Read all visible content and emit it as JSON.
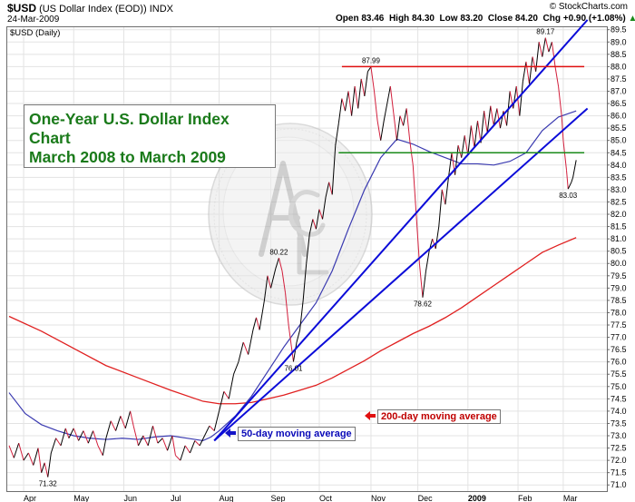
{
  "header": {
    "symbol": "$USD",
    "name": "(US Dollar Index (EOD))",
    "exchange": "INDX",
    "date": "24-Mar-2009",
    "open_label": "Open",
    "open": "83.46",
    "high_label": "High",
    "high": "84.30",
    "low_label": "Low",
    "low": "83.20",
    "close_label": "Close",
    "close": "84.20",
    "chg_label": "Chg",
    "chg": "+0.90 (+1.08%)",
    "up_arrow": "▲",
    "copyright": "© StockCharts.com"
  },
  "panel_label": "$USD (Daily)",
  "title_box": {
    "line1": "One-Year U.S. Dollar Index Chart",
    "line2": "March 2008 to March 2009"
  },
  "ma_labels": {
    "ma200": "200-day moving average",
    "ma50": "50-day moving average"
  },
  "colors": {
    "price": "#000000",
    "price_down": "#d21f3c",
    "ma50": "#3a3ab0",
    "ma200": "#e02020",
    "channel": "#0b0bd8",
    "resistance": "#e01010",
    "support": "#1a8a1a",
    "title_text": "#1a7a1a"
  },
  "chart_data": {
    "type": "line",
    "title": "One-Year U.S. Dollar Index Chart March 2008 to March 2009",
    "ylim": [
      70.75,
      89.6
    ],
    "yticks": [
      "71.0",
      "71.5",
      "72.0",
      "72.5",
      "73.0",
      "73.5",
      "74.0",
      "74.5",
      "75.0",
      "75.5",
      "76.0",
      "76.5",
      "77.0",
      "77.5",
      "78.0",
      "78.5",
      "79.0",
      "79.5",
      "80.0",
      "80.5",
      "81.0",
      "81.5",
      "82.0",
      "82.5",
      "83.0",
      "83.5",
      "84.0",
      "84.5",
      "85.0",
      "85.5",
      "86.0",
      "86.5",
      "87.0",
      "87.5",
      "88.0",
      "88.5",
      "89.0",
      "89.5"
    ],
    "xticks": [
      {
        "label": "Apr",
        "t": 9
      },
      {
        "label": "May",
        "t": 40
      },
      {
        "label": "Jun",
        "t": 71
      },
      {
        "label": "Jul",
        "t": 100
      },
      {
        "label": "Aug",
        "t": 130
      },
      {
        "label": "Sep",
        "t": 162
      },
      {
        "label": "Oct",
        "t": 192
      },
      {
        "label": "Nov",
        "t": 224
      },
      {
        "label": "Dec",
        "t": 253
      },
      {
        "label": "2009",
        "t": 284,
        "bold": true
      },
      {
        "label": "Feb",
        "t": 315
      },
      {
        "label": "Mar",
        "t": 343
      }
    ],
    "x_domain": [
      0,
      370
    ],
    "series": [
      {
        "name": "$USD",
        "points": [
          [
            0,
            72.6
          ],
          [
            3,
            72.1
          ],
          [
            6,
            72.7
          ],
          [
            9,
            72.0
          ],
          [
            12,
            72.3
          ],
          [
            15,
            71.8
          ],
          [
            18,
            72.5
          ],
          [
            20,
            71.5
          ],
          [
            22,
            71.9
          ],
          [
            24,
            71.32
          ],
          [
            26,
            72.3
          ],
          [
            29,
            72.9
          ],
          [
            32,
            72.6
          ],
          [
            35,
            73.3
          ],
          [
            37,
            72.9
          ],
          [
            40,
            73.3
          ],
          [
            43,
            72.8
          ],
          [
            46,
            73.2
          ],
          [
            49,
            72.7
          ],
          [
            52,
            73.2
          ],
          [
            55,
            72.6
          ],
          [
            58,
            72.2
          ],
          [
            60,
            72.9
          ],
          [
            63,
            73.6
          ],
          [
            66,
            73.2
          ],
          [
            69,
            73.8
          ],
          [
            72,
            73.3
          ],
          [
            75,
            74.0
          ],
          [
            77,
            73.4
          ],
          [
            80,
            72.6
          ],
          [
            83,
            73.0
          ],
          [
            86,
            72.6
          ],
          [
            89,
            73.4
          ],
          [
            92,
            72.7
          ],
          [
            95,
            72.9
          ],
          [
            98,
            72.4
          ],
          [
            101,
            73.0
          ],
          [
            103,
            72.2
          ],
          [
            106,
            72.0
          ],
          [
            109,
            72.6
          ],
          [
            112,
            72.3
          ],
          [
            115,
            72.8
          ],
          [
            118,
            72.6
          ],
          [
            121,
            73.0
          ],
          [
            124,
            73.4
          ],
          [
            127,
            73.2
          ],
          [
            130,
            74.0
          ],
          [
            133,
            74.8
          ],
          [
            136,
            74.5
          ],
          [
            139,
            75.5
          ],
          [
            142,
            76.0
          ],
          [
            145,
            76.8
          ],
          [
            148,
            76.3
          ],
          [
            151,
            77.3
          ],
          [
            153,
            77.8
          ],
          [
            155,
            77.3
          ],
          [
            158,
            78.5
          ],
          [
            160,
            79.5
          ],
          [
            162,
            79.0
          ],
          [
            165,
            79.8
          ],
          [
            167,
            80.22
          ],
          [
            169,
            79.7
          ],
          [
            171,
            78.8
          ],
          [
            173,
            77.5
          ],
          [
            175,
            76.5
          ],
          [
            176,
            76.01
          ],
          [
            178,
            76.8
          ],
          [
            180,
            77.3
          ],
          [
            182,
            78.5
          ],
          [
            184,
            80.0
          ],
          [
            186,
            81.2
          ],
          [
            188,
            81.8
          ],
          [
            190,
            81.4
          ],
          [
            192,
            82.2
          ],
          [
            194,
            81.8
          ],
          [
            196,
            82.7
          ],
          [
            198,
            83.3
          ],
          [
            200,
            82.8
          ],
          [
            202,
            84.8
          ],
          [
            204,
            85.7
          ],
          [
            206,
            86.7
          ],
          [
            208,
            86.2
          ],
          [
            210,
            87.0
          ],
          [
            212,
            86.0
          ],
          [
            214,
            87.2
          ],
          [
            216,
            86.3
          ],
          [
            218,
            87.5
          ],
          [
            220,
            86.8
          ],
          [
            222,
            87.8
          ],
          [
            224,
            87.99
          ],
          [
            226,
            87.0
          ],
          [
            228,
            85.8
          ],
          [
            230,
            85.0
          ],
          [
            232,
            85.8
          ],
          [
            234,
            86.5
          ],
          [
            236,
            87.2
          ],
          [
            238,
            86.1
          ],
          [
            240,
            85.0
          ],
          [
            242,
            86.0
          ],
          [
            244,
            85.6
          ],
          [
            246,
            86.3
          ],
          [
            248,
            85.0
          ],
          [
            250,
            84.0
          ],
          [
            252,
            82.0
          ],
          [
            254,
            80.0
          ],
          [
            256,
            78.62
          ],
          [
            258,
            79.7
          ],
          [
            260,
            80.5
          ],
          [
            262,
            81.0
          ],
          [
            264,
            80.6
          ],
          [
            266,
            81.5
          ],
          [
            268,
            83.0
          ],
          [
            270,
            82.4
          ],
          [
            272,
            83.5
          ],
          [
            274,
            84.5
          ],
          [
            276,
            83.6
          ],
          [
            278,
            84.8
          ],
          [
            280,
            84.3
          ],
          [
            282,
            85.2
          ],
          [
            284,
            84.4
          ],
          [
            286,
            85.6
          ],
          [
            288,
            84.7
          ],
          [
            290,
            85.8
          ],
          [
            292,
            84.9
          ],
          [
            294,
            86.2
          ],
          [
            296,
            85.3
          ],
          [
            298,
            86.4
          ],
          [
            300,
            85.6
          ],
          [
            302,
            86.3
          ],
          [
            304,
            85.5
          ],
          [
            306,
            86.2
          ],
          [
            308,
            85.6
          ],
          [
            310,
            87.0
          ],
          [
            312,
            86.3
          ],
          [
            314,
            87.2
          ],
          [
            316,
            86.0
          ],
          [
            318,
            87.4
          ],
          [
            320,
            88.2
          ],
          [
            322,
            87.3
          ],
          [
            324,
            88.4
          ],
          [
            326,
            87.8
          ],
          [
            328,
            89.0
          ],
          [
            330,
            88.4
          ],
          [
            332,
            89.17
          ],
          [
            334,
            88.6
          ],
          [
            336,
            89.0
          ],
          [
            338,
            88.0
          ],
          [
            340,
            87.2
          ],
          [
            342,
            86.0
          ],
          [
            343,
            85.0
          ],
          [
            345,
            83.8
          ],
          [
            346,
            83.03
          ],
          [
            348,
            83.3
          ],
          [
            349,
            83.5
          ],
          [
            351,
            84.2
          ]
        ]
      },
      {
        "name": "50-day moving average",
        "points": [
          [
            0,
            74.75
          ],
          [
            10,
            73.9
          ],
          [
            20,
            73.45
          ],
          [
            30,
            73.2
          ],
          [
            40,
            73.0
          ],
          [
            50,
            72.9
          ],
          [
            60,
            72.85
          ],
          [
            70,
            72.9
          ],
          [
            80,
            72.85
          ],
          [
            90,
            72.95
          ],
          [
            100,
            73.0
          ],
          [
            110,
            72.9
          ],
          [
            120,
            72.8
          ],
          [
            125,
            72.95
          ],
          [
            130,
            73.2
          ],
          [
            140,
            73.8
          ],
          [
            150,
            74.6
          ],
          [
            160,
            75.6
          ],
          [
            170,
            76.6
          ],
          [
            180,
            77.5
          ],
          [
            190,
            78.4
          ],
          [
            200,
            79.7
          ],
          [
            210,
            81.4
          ],
          [
            220,
            83.0
          ],
          [
            230,
            84.3
          ],
          [
            240,
            85.05
          ],
          [
            250,
            84.85
          ],
          [
            260,
            84.55
          ],
          [
            270,
            84.3
          ],
          [
            280,
            84.05
          ],
          [
            290,
            84.05
          ],
          [
            300,
            84.0
          ],
          [
            310,
            84.15
          ],
          [
            320,
            84.5
          ],
          [
            330,
            85.4
          ],
          [
            340,
            85.95
          ],
          [
            351,
            86.2
          ]
        ]
      },
      {
        "name": "200-day moving average",
        "points": [
          [
            0,
            77.85
          ],
          [
            20,
            77.25
          ],
          [
            40,
            76.55
          ],
          [
            60,
            75.85
          ],
          [
            80,
            75.35
          ],
          [
            100,
            74.85
          ],
          [
            120,
            74.4
          ],
          [
            130,
            74.3
          ],
          [
            140,
            74.3
          ],
          [
            150,
            74.35
          ],
          [
            160,
            74.5
          ],
          [
            170,
            74.65
          ],
          [
            180,
            74.85
          ],
          [
            190,
            75.05
          ],
          [
            200,
            75.35
          ],
          [
            210,
            75.7
          ],
          [
            220,
            76.05
          ],
          [
            230,
            76.45
          ],
          [
            240,
            76.8
          ],
          [
            250,
            77.15
          ],
          [
            260,
            77.45
          ],
          [
            270,
            77.8
          ],
          [
            280,
            78.2
          ],
          [
            290,
            78.65
          ],
          [
            300,
            79.1
          ],
          [
            310,
            79.55
          ],
          [
            320,
            80.0
          ],
          [
            330,
            80.45
          ],
          [
            340,
            80.75
          ],
          [
            351,
            81.05
          ]
        ]
      }
    ],
    "trendlines": [
      {
        "name": "channel-upper",
        "from": [
          127,
          72.8
        ],
        "to": [
          358,
          89.9
        ]
      },
      {
        "name": "channel-lower",
        "from": [
          127,
          72.8
        ],
        "to": [
          358,
          86.3
        ]
      },
      {
        "name": "resistance",
        "from": [
          206,
          88.0
        ],
        "to": [
          356,
          88.0
        ]
      },
      {
        "name": "support",
        "from": [
          204,
          84.5
        ],
        "to": [
          356,
          84.5
        ]
      }
    ],
    "annotations": [
      {
        "text": "71.32",
        "t": 24,
        "y": 71.32,
        "pos": "below"
      },
      {
        "text": "80.22",
        "t": 167,
        "y": 80.22,
        "pos": "above"
      },
      {
        "text": "76.01",
        "t": 176,
        "y": 76.01,
        "pos": "below"
      },
      {
        "text": "87.99",
        "t": 224,
        "y": 87.99,
        "pos": "above"
      },
      {
        "text": "78.62",
        "t": 256,
        "y": 78.62,
        "pos": "below"
      },
      {
        "text": "89.17",
        "t": 332,
        "y": 89.17,
        "pos": "above"
      },
      {
        "text": "83.03",
        "t": 346,
        "y": 83.03,
        "pos": "below"
      }
    ],
    "grid": true
  }
}
